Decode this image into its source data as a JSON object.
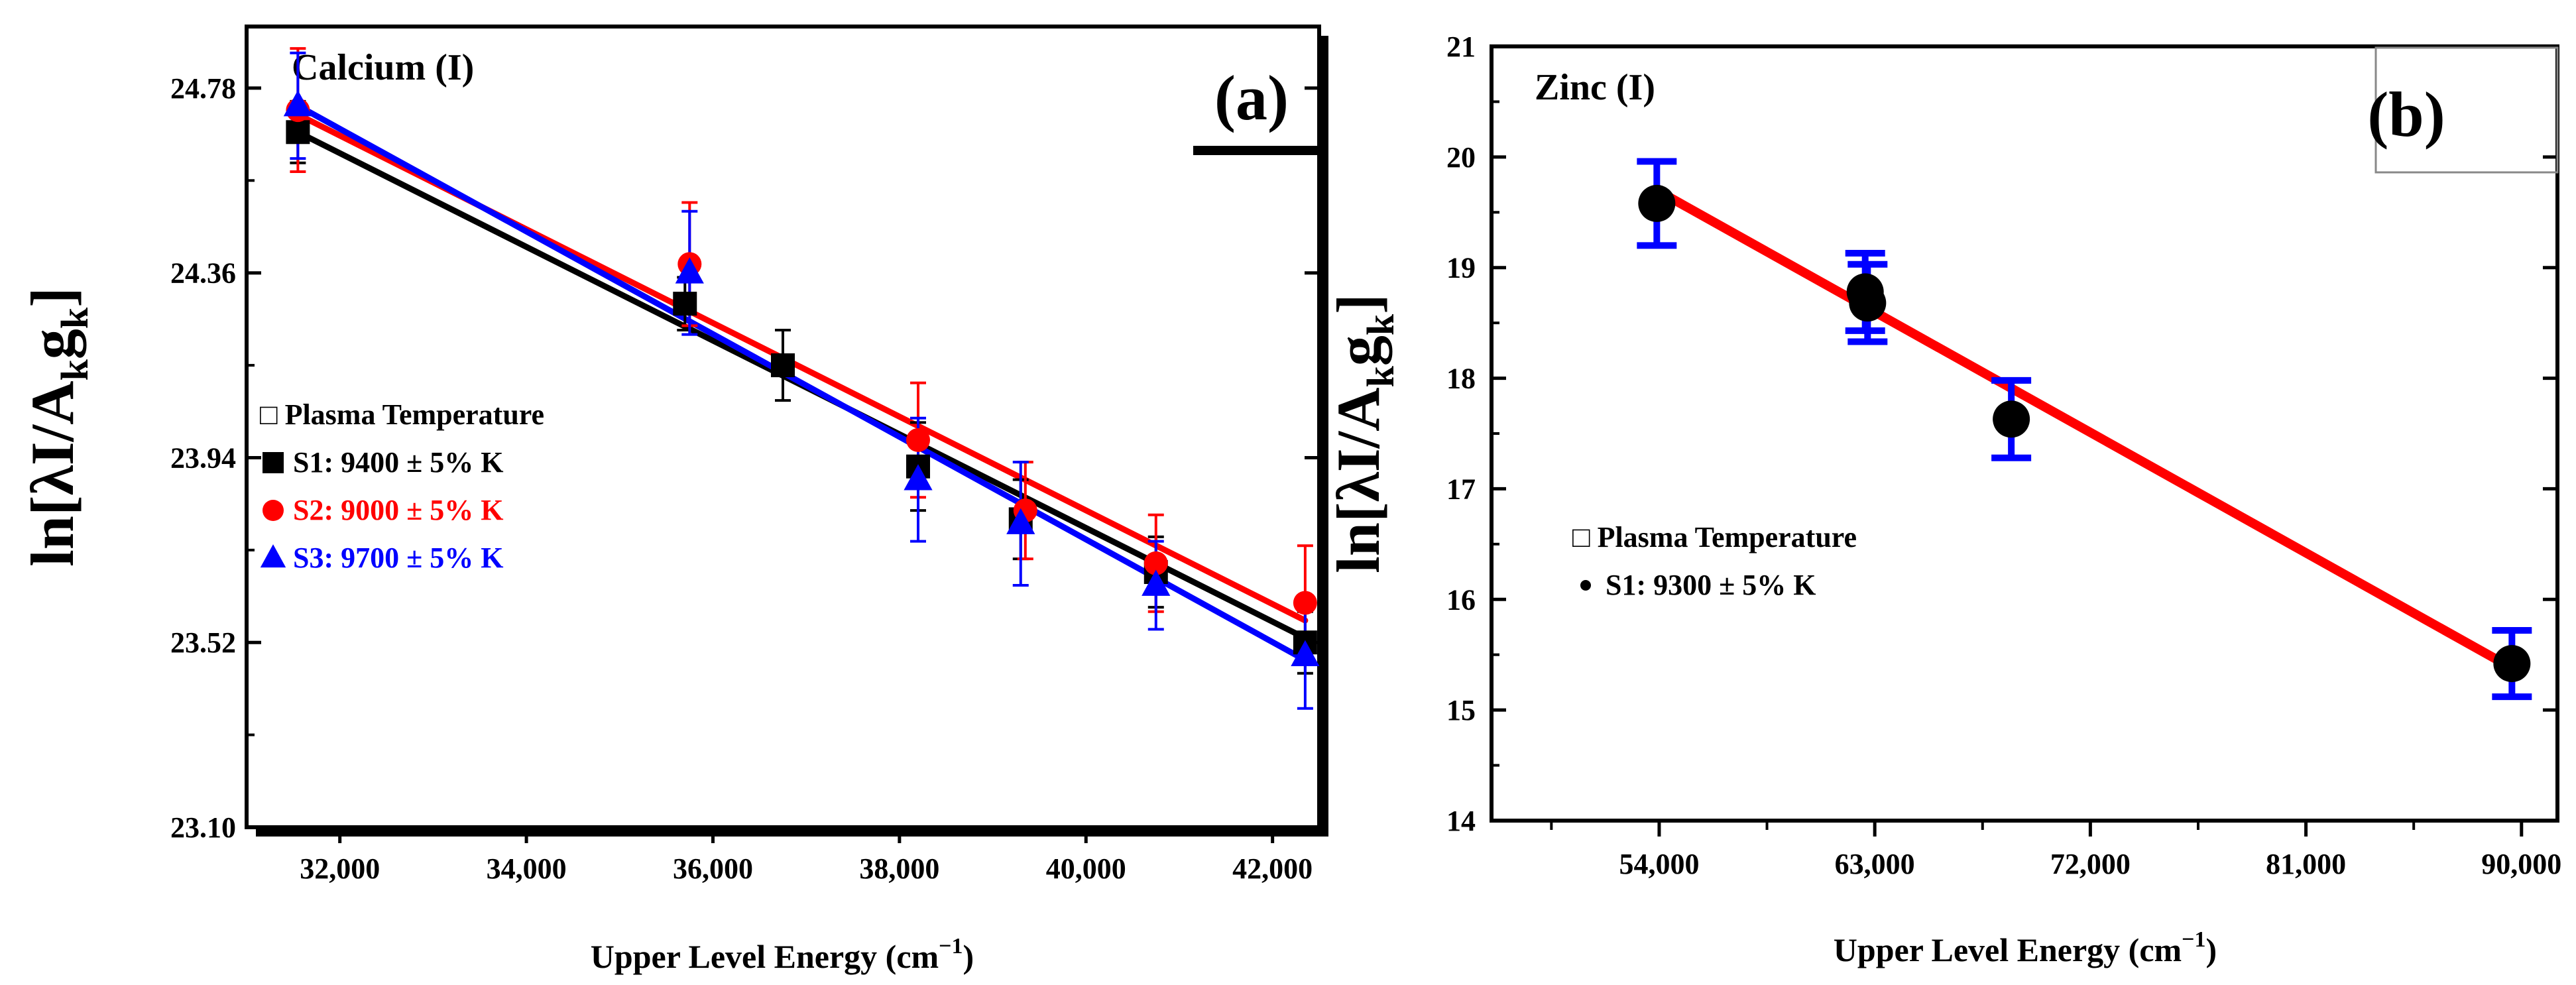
{
  "chart_data": [
    {
      "type": "scatter",
      "panel_label": "(a)",
      "element": "Calcium (I)",
      "xlabel_parts": [
        "Upper Level Energy (cm",
        "−1",
        ")"
      ],
      "ylabel_parts": [
        "ln[λI/A",
        "k",
        "g",
        "k",
        "]"
      ],
      "xlim": [
        31000,
        42500
      ],
      "ylim": [
        23.1,
        24.92
      ],
      "xticks": [
        32000,
        34000,
        36000,
        38000,
        40000,
        42000
      ],
      "xtick_labels": [
        "32,000",
        "34,000",
        "36,000",
        "38,000",
        "40,000",
        "42,000"
      ],
      "yticks": [
        23.1,
        23.52,
        23.94,
        24.36,
        24.78
      ],
      "ytick_labels": [
        "23.10",
        "23.52",
        "23.94",
        "24.36",
        "24.78"
      ],
      "legend_title": "Plasma Temperature",
      "legend_title_glyph": "□",
      "legend_position": "middle-left",
      "series": [
        {
          "name": "S1: 9400 ± 5% K",
          "color": "#000000",
          "marker": "square",
          "x": [
            31550,
            35700,
            36750,
            38200,
            39300,
            40750,
            42350
          ],
          "y": [
            24.68,
            24.29,
            24.15,
            23.92,
            23.8,
            23.68,
            23.52
          ],
          "err": [
            0.07,
            0.06,
            0.08,
            0.1,
            0.09,
            0.08,
            0.07
          ],
          "fit": [
            [
              31550,
              24.68
            ],
            [
              42350,
              23.53
            ]
          ]
        },
        {
          "name": "S2: 9000 ± 5% K",
          "color": "#ff0000",
          "marker": "circle",
          "x": [
            31550,
            35750,
            38200,
            39350,
            40750,
            42350
          ],
          "y": [
            24.73,
            24.38,
            23.98,
            23.82,
            23.7,
            23.61
          ],
          "err": [
            0.14,
            0.14,
            0.13,
            0.11,
            0.11,
            0.13
          ],
          "fit": [
            [
              31550,
              24.72
            ],
            [
              42350,
              23.57
            ]
          ]
        },
        {
          "name": "S3: 9700 ± 5% K",
          "color": "#0000ff",
          "marker": "triangle",
          "x": [
            31550,
            35750,
            38200,
            39300,
            40750,
            42350
          ],
          "y": [
            24.74,
            24.36,
            23.89,
            23.79,
            23.65,
            23.49
          ],
          "err": [
            0.12,
            0.14,
            0.14,
            0.14,
            0.1,
            0.12
          ],
          "fit": [
            [
              31550,
              24.74
            ],
            [
              42350,
              23.48
            ]
          ]
        }
      ]
    },
    {
      "type": "scatter",
      "panel_label": "(b)",
      "element": "Zinc (I)",
      "xlabel_parts": [
        "Upper Level Energy (cm",
        "−1",
        ")"
      ],
      "ylabel_parts": [
        "ln[λI/A",
        "k",
        "g",
        "k",
        "]"
      ],
      "xlim": [
        47000,
        91500
      ],
      "ylim": [
        14,
        21
      ],
      "xticks": [
        54000,
        63000,
        72000,
        81000,
        90000
      ],
      "xtick_labels": [
        "54,000",
        "63,000",
        "72,000",
        "81,000",
        "90,000"
      ],
      "yticks": [
        14,
        15,
        16,
        17,
        18,
        19,
        20,
        21
      ],
      "ytick_labels": [
        "14",
        "15",
        "16",
        "17",
        "18",
        "19",
        "20",
        "21"
      ],
      "legend_title": "Plasma Temperature",
      "legend_title_glyph": "□",
      "legend_position": "lower-left",
      "series": [
        {
          "name": "S1: 9300 ± 5% K",
          "color": "#000000",
          "marker": "circle",
          "x": [
            53900,
            62600,
            62700,
            68700,
            89600
          ],
          "y": [
            19.58,
            18.78,
            18.68,
            17.63,
            15.42
          ],
          "err": [
            0.38,
            0.35,
            0.35,
            0.35,
            0.3
          ],
          "err_color": "#0000ff",
          "fit": [
            [
              53900,
              19.7
            ],
            [
              89600,
              15.38
            ]
          ],
          "fit_color": "#ff0000"
        }
      ]
    }
  ]
}
